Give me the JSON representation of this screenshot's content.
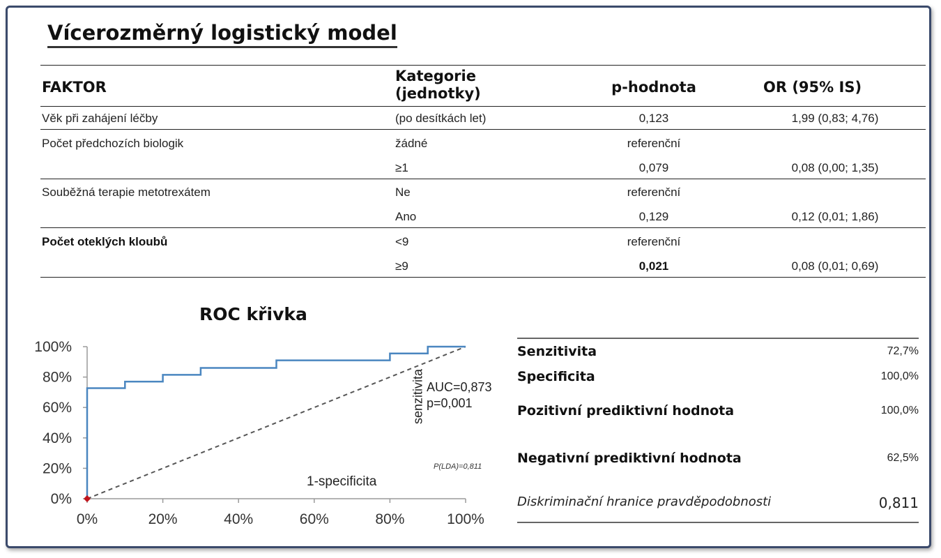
{
  "title": "Vícerozměrný logistický model",
  "table": {
    "headers": {
      "factor": "FAKTOR",
      "category_line1": "Kategorie",
      "category_line2": "(jednotky)",
      "p": "p-hodnota",
      "or": "OR (95% IS)"
    },
    "rows": [
      {
        "factor": "Věk při zahájení léčby",
        "category": "(po desítkách let)",
        "p": "0,123",
        "or": "1,99 (0,83; 4,76)"
      },
      {
        "factor": "Počet předchozích biologik",
        "category": "žádné",
        "p": "referenční",
        "or": ""
      },
      {
        "factor": "",
        "category": "≥1",
        "p": "0,079",
        "or": "0,08 (0,00; 1,35)"
      },
      {
        "factor": "Souběžná terapie metotrexátem",
        "category": "Ne",
        "p": "referenční",
        "or": ""
      },
      {
        "factor": "",
        "category": "Ano",
        "p": "0,129",
        "or": "0,12 (0,01; 1,86)"
      },
      {
        "factor": "Počet oteklých kloubů",
        "category": "<9",
        "p": "referenční",
        "or": ""
      },
      {
        "factor": "",
        "category": "≥9",
        "p": "0,021",
        "or": "0,08 (0,01; 0,69)"
      }
    ]
  },
  "stats": {
    "rows": [
      {
        "label": "Senzitivita",
        "value": "72,7%"
      },
      {
        "label": "Specificita",
        "value": "100,0%"
      },
      {
        "label": "Pozitivní prediktivní hodnota",
        "value": "100,0%"
      },
      {
        "label": "Negativní prediktivní hodnota",
        "value": "62,5%"
      },
      {
        "label": "Diskriminační hranice pravděpodobnosti",
        "value": "0,811"
      }
    ]
  },
  "chart_data": {
    "type": "line",
    "title": "ROC křivka",
    "xlabel": "1-specificita",
    "ylabel": "senzitivita",
    "xlim": [
      0,
      100
    ],
    "ylim": [
      0,
      100
    ],
    "x_ticks": [
      "0%",
      "20%",
      "40%",
      "60%",
      "80%",
      "100%"
    ],
    "y_ticks": [
      "0%",
      "20%",
      "40%",
      "60%",
      "80%",
      "100%"
    ],
    "series": [
      {
        "x": [
          0,
          0,
          10,
          10,
          20,
          20,
          30,
          30,
          50,
          50,
          80,
          80,
          90,
          90,
          100
        ],
        "y": [
          0,
          72.7,
          72.7,
          77,
          77,
          81.5,
          81.5,
          86,
          86,
          91,
          91,
          95.5,
          95.5,
          100,
          100
        ],
        "color": "#4a86c0"
      },
      {
        "x": [
          0,
          100
        ],
        "y": [
          0,
          100
        ],
        "color": "#555555",
        "style": "dashed"
      }
    ],
    "annotations": [
      "AUC=0,873",
      "p=0,001",
      "P(LDA)=0,811"
    ],
    "marker": {
      "x": 0,
      "y": 0,
      "color": "#c0141c"
    },
    "grid": false
  }
}
